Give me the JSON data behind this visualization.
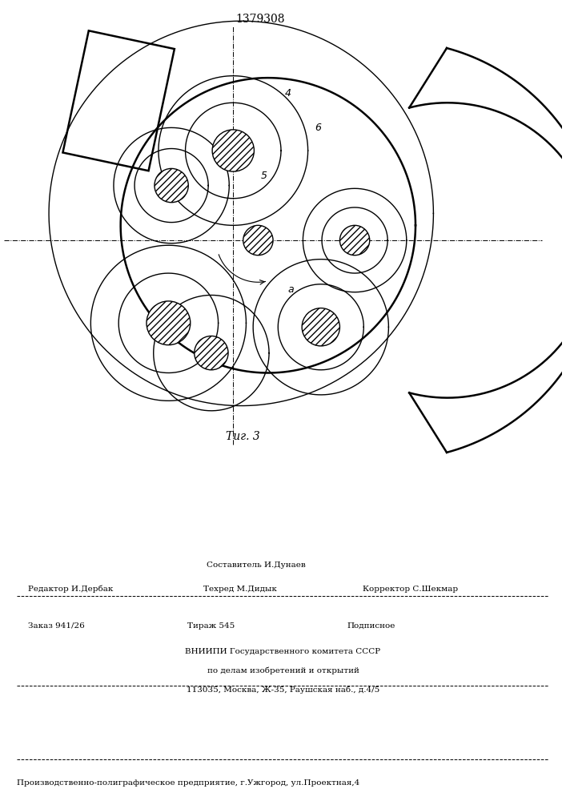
{
  "title": "1379308",
  "fig_label": "Τиг. 3",
  "bg_color": "#ffffff",
  "line_color": "#000000",
  "footer": {
    "line1_center": "Составитель И.Дунаев",
    "line2_left": "Редактор И.Дербак",
    "line2_mid": "Техред М.Дидык",
    "line2_right": "Корректор С.Шекмар",
    "line3_left": "Заказ 941/26",
    "line3_mid": "Тираж 545",
    "line3_right": "Подписное",
    "line4": "ВНИИПИ Государственного комитета СССР",
    "line5": "по делам изобретений и открытий",
    "line6": "113035, Москва, Ж-35, Раушская наб., д.4/5",
    "line7": "Производственно-полиграфическое предприятие, г.Ужгород, ул.Проектная,4"
  }
}
